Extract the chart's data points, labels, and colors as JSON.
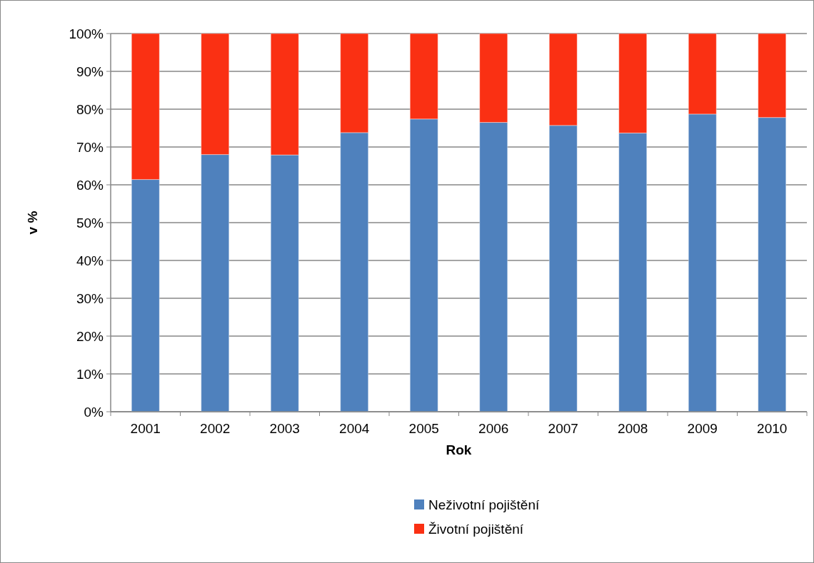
{
  "chart_data": {
    "type": "bar",
    "stacked": true,
    "xlabel": "Rok",
    "ylabel": "v %",
    "categories": [
      "2001",
      "2002",
      "2003",
      "2004",
      "2005",
      "2006",
      "2007",
      "2008",
      "2009",
      "2010"
    ],
    "series": [
      {
        "name": "Neživotní pojištění",
        "color": "#4f81bd",
        "values": [
          61.4,
          68.0,
          67.9,
          73.8,
          77.4,
          76.5,
          75.7,
          73.7,
          78.7,
          77.8
        ]
      },
      {
        "name": "Životní pojištění",
        "color": "#fa3013",
        "values": [
          38.6,
          32.0,
          32.1,
          26.2,
          22.6,
          23.5,
          24.3,
          26.3,
          21.3,
          22.2
        ]
      }
    ],
    "ylim": [
      0,
      100
    ],
    "yticks": [
      {
        "value": 0,
        "label": "0%"
      },
      {
        "value": 10,
        "label": "10%"
      },
      {
        "value": 20,
        "label": "20%"
      },
      {
        "value": 30,
        "label": "30%"
      },
      {
        "value": 40,
        "label": "40%"
      },
      {
        "value": 50,
        "label": "50%"
      },
      {
        "value": 60,
        "label": "60%"
      },
      {
        "value": 70,
        "label": "70%"
      },
      {
        "value": 80,
        "label": "80%"
      },
      {
        "value": 90,
        "label": "90%"
      },
      {
        "value": 100,
        "label": "100%"
      }
    ],
    "grid": "y",
    "legend": "bottom"
  }
}
